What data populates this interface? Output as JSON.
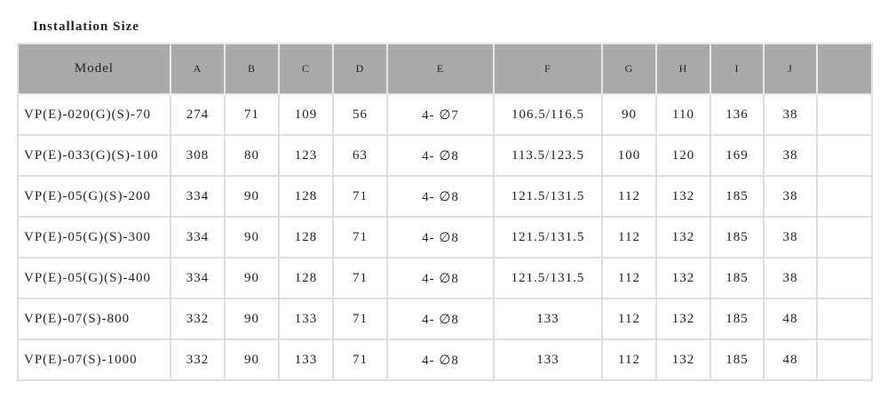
{
  "title": "Installation Size",
  "table": {
    "header": [
      "Model",
      "A",
      "B",
      "C",
      "D",
      "E",
      "F",
      "G",
      "H",
      "I",
      "J"
    ],
    "rows": [
      [
        "VP(E)-020(G)(S)-70",
        "274",
        "71",
        "109",
        "56",
        "4- ∅7",
        "106.5/116.5",
        "90",
        "110",
        "136",
        "38"
      ],
      [
        "VP(E)-033(G)(S)-100",
        "308",
        "80",
        "123",
        "63",
        "4- ∅8",
        "113.5/123.5",
        "100",
        "120",
        "169",
        "38"
      ],
      [
        "VP(E)-05(G)(S)-200",
        "334",
        "90",
        "128",
        "71",
        "4- ∅8",
        "121.5/131.5",
        "112",
        "132",
        "185",
        "38"
      ],
      [
        "VP(E)-05(G)(S)-300",
        "334",
        "90",
        "128",
        "71",
        "4- ∅8",
        "121.5/131.5",
        "112",
        "132",
        "185",
        "38"
      ],
      [
        "VP(E)-05(G)(S)-400",
        "334",
        "90",
        "128",
        "71",
        "4- ∅8",
        "121.5/131.5",
        "112",
        "132",
        "185",
        "38"
      ],
      [
        "VP(E)-07(S)-800",
        "332",
        "90",
        "133",
        "71",
        "4- ∅8",
        "133",
        "112",
        "132",
        "185",
        "48"
      ],
      [
        "VP(E)-07(S)-1000",
        "332",
        "90",
        "133",
        "71",
        "4- ∅8",
        "133",
        "112",
        "132",
        "185",
        "48"
      ]
    ]
  }
}
